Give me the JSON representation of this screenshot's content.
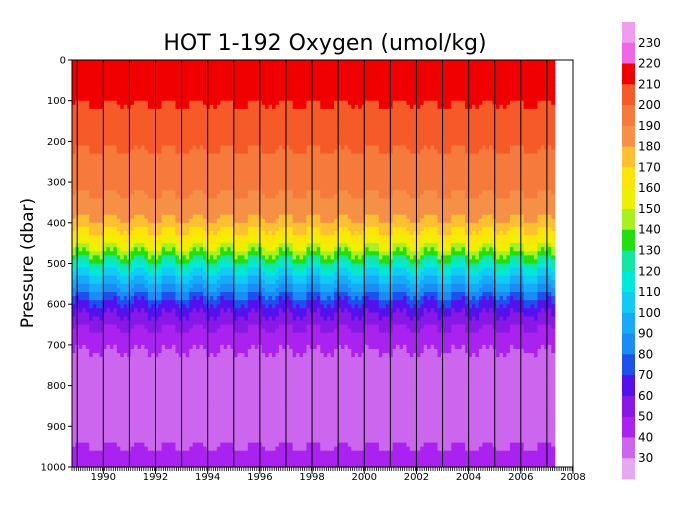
{
  "chart_data": {
    "type": "heatmap",
    "title": "HOT 1-192 Oxygen (umol/kg)",
    "ylabel": "Pressure (dbar)",
    "xlabel": "",
    "x_range": [
      1988.8,
      2008.0
    ],
    "y_range": [
      0,
      1000
    ],
    "y_reversed": true,
    "x_ticks": [
      "1990",
      "1992",
      "1994",
      "1996",
      "1998",
      "2000",
      "2002",
      "2004",
      "2006",
      "2008"
    ],
    "y_ticks": [
      "0",
      "100",
      "200",
      "300",
      "400",
      "500",
      "600",
      "700",
      "800",
      "900",
      "1000"
    ],
    "data_end_year": 2007.3,
    "contour_levels": [
      "30",
      "40",
      "50",
      "60",
      "70",
      "80",
      "90",
      "100",
      "110",
      "120",
      "130",
      "140",
      "150",
      "160",
      "170",
      "180",
      "190",
      "200",
      "210",
      "220",
      "230"
    ],
    "level_colors": [
      "#e6a8f2",
      "#cc66ee",
      "#aa22f0",
      "#8818e6",
      "#5510ee",
      "#1e50ee",
      "#1a8cf5",
      "#16aaf8",
      "#10ccf4",
      "#00eadc",
      "#14e6a4",
      "#20e010",
      "#a8f020",
      "#eef000",
      "#ffe40a",
      "#fcc030",
      "#f69046",
      "#f57a3c",
      "#f55a28",
      "#f00000",
      "#f266e6",
      "#f09cf0"
    ],
    "cruise_line_years": [
      1989.0,
      1990.0,
      1991.0,
      1992.0,
      1993.0,
      1994.0,
      1995.0,
      1996.0,
      1997.0,
      1998.0,
      1999.0,
      2000.0,
      2001.0,
      2002.0,
      2003.0,
      2004.0,
      2005.0,
      2006.0,
      2007.0
    ],
    "profile": [
      {
        "p": 0,
        "v": 212
      },
      {
        "p": 100,
        "v": 211
      },
      {
        "p": 150,
        "v": 205
      },
      {
        "p": 250,
        "v": 198
      },
      {
        "p": 350,
        "v": 188
      },
      {
        "p": 400,
        "v": 178
      },
      {
        "p": 430,
        "v": 165
      },
      {
        "p": 460,
        "v": 150
      },
      {
        "p": 490,
        "v": 130
      },
      {
        "p": 520,
        "v": 110
      },
      {
        "p": 560,
        "v": 90
      },
      {
        "p": 600,
        "v": 68
      },
      {
        "p": 650,
        "v": 52
      },
      {
        "p": 700,
        "v": 42
      },
      {
        "p": 760,
        "v": 34
      },
      {
        "p": 840,
        "v": 33
      },
      {
        "p": 900,
        "v": 38
      },
      {
        "p": 1000,
        "v": 42
      }
    ]
  }
}
